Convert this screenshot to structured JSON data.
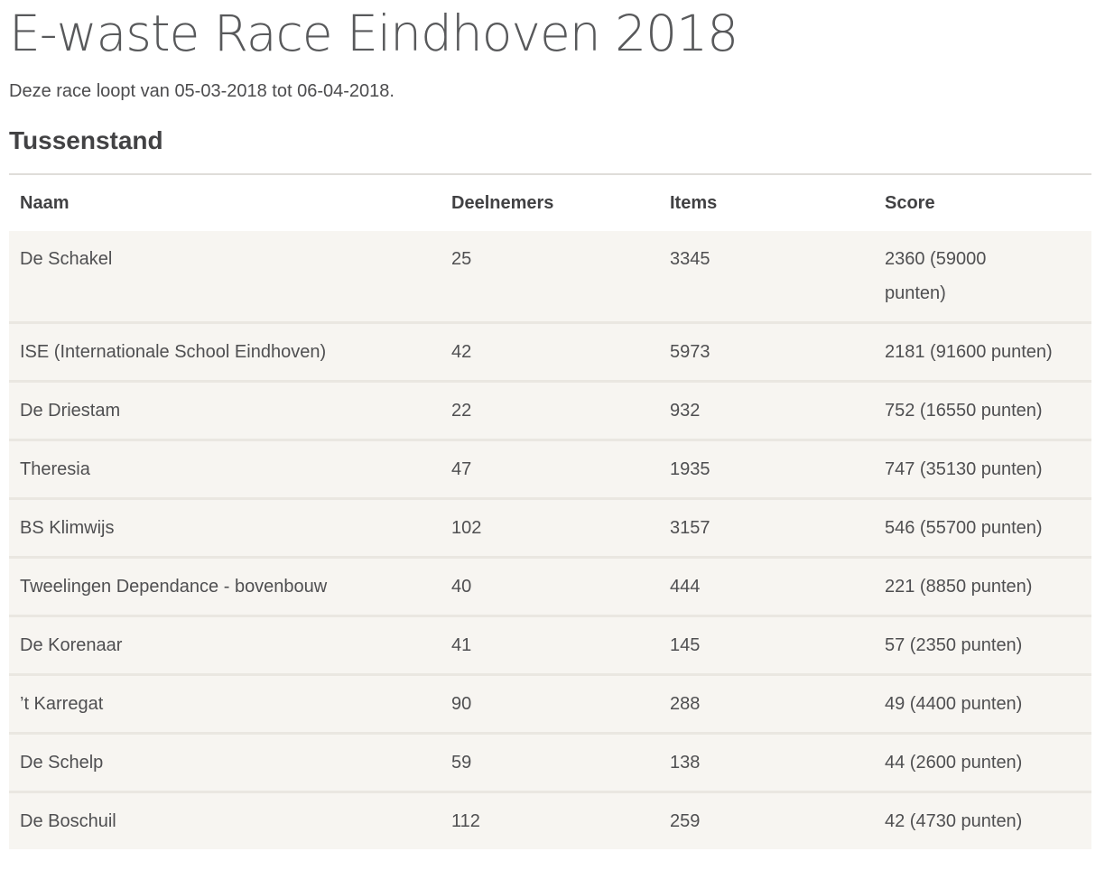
{
  "page": {
    "title": "E-waste Race Eindhoven 2018",
    "subtitle": "Deze race loopt van 05-03-2018 tot 06-04-2018.",
    "section_heading": "Tussenstand"
  },
  "colors": {
    "title_text": "#58595b",
    "heading_text": "#424244",
    "cell_text": "#4f4f51",
    "row_background": "#f7f5f1",
    "row_separator": "#eae7e1",
    "table_top_border": "#dfddd9",
    "page_background": "#ffffff"
  },
  "table": {
    "columns": [
      {
        "key": "naam",
        "label": "Naam"
      },
      {
        "key": "deelnemers",
        "label": "Deelnemers"
      },
      {
        "key": "items",
        "label": "Items"
      },
      {
        "key": "score",
        "label": "Score"
      }
    ],
    "rows": [
      {
        "naam": "De Schakel",
        "deelnemers": "25",
        "items": "3345",
        "score": "2360 (59000\npunten)"
      },
      {
        "naam": "ISE (Internationale School Eindhoven)",
        "deelnemers": "42",
        "items": "5973",
        "score": "2181 (91600 punten)"
      },
      {
        "naam": "De Driestam",
        "deelnemers": "22",
        "items": "932",
        "score": "752 (16550 punten)"
      },
      {
        "naam": "Theresia",
        "deelnemers": "47",
        "items": "1935",
        "score": "747 (35130 punten)"
      },
      {
        "naam": "BS Klimwijs",
        "deelnemers": "102",
        "items": "3157",
        "score": "546 (55700 punten)"
      },
      {
        "naam": "Tweelingen Dependance - bovenbouw",
        "deelnemers": "40",
        "items": "444",
        "score": "221 (8850 punten)"
      },
      {
        "naam": "De Korenaar",
        "deelnemers": "41",
        "items": "145",
        "score": "57 (2350 punten)"
      },
      {
        "naam": "’t Karregat",
        "deelnemers": "90",
        "items": "288",
        "score": "49 (4400 punten)"
      },
      {
        "naam": "De Schelp",
        "deelnemers": "59",
        "items": "138",
        "score": "44 (2600 punten)"
      },
      {
        "naam": "De Boschuil",
        "deelnemers": "112",
        "items": "259",
        "score": "42 (4730 punten)"
      }
    ]
  }
}
